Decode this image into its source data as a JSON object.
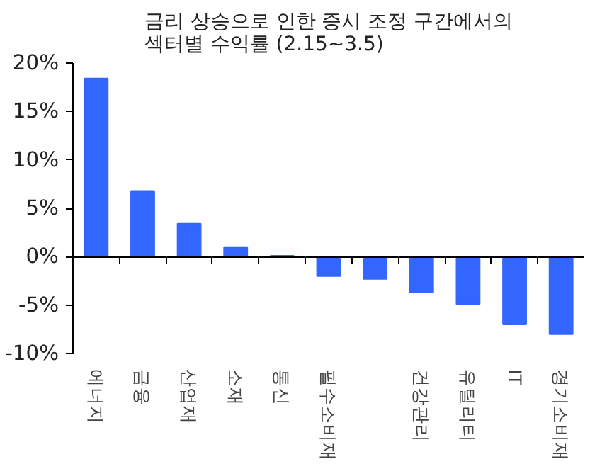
{
  "chart_data": {
    "type": "bar",
    "title": "금리 상승으로 인한 증시 조정 구간에서의\n섹터별 수익률 (2.15~3.5)",
    "categories": [
      "에너지",
      "금융",
      "산업재",
      "소재",
      "통신",
      "필수소비재",
      null,
      "건강관리",
      "유틸리티",
      "IT",
      "경기소비재"
    ],
    "values": [
      18.4,
      6.8,
      3.4,
      1.0,
      0.1,
      -2.0,
      -2.3,
      -3.7,
      -4.9,
      -7.0,
      -8.0
    ],
    "color": "#3366ff",
    "ylim": [
      -10,
      20
    ],
    "yticks": [
      {
        "value": -10,
        "label": "-10%"
      },
      {
        "value": -5,
        "label": "-5%"
      },
      {
        "value": 0,
        "label": "0%"
      },
      {
        "value": 5,
        "label": "5%"
      },
      {
        "value": 10,
        "label": "10%"
      },
      {
        "value": 15,
        "label": "15%"
      },
      {
        "value": 20,
        "label": "20%"
      }
    ]
  }
}
